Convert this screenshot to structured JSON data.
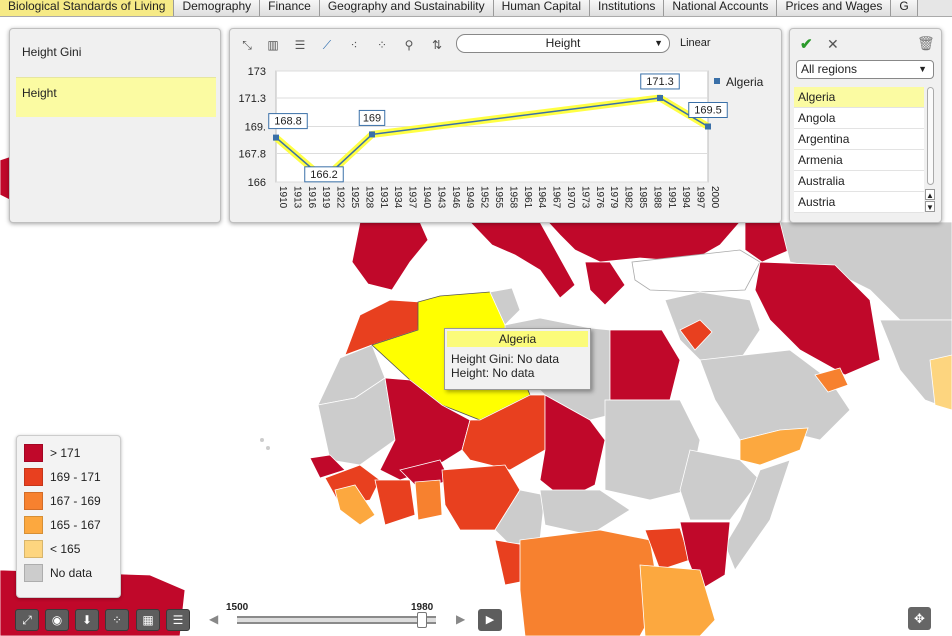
{
  "tabs": [
    {
      "label": "Biological Standards of Living",
      "active": true
    },
    {
      "label": "Demography"
    },
    {
      "label": "Finance"
    },
    {
      "label": "Geography and Sustainability"
    },
    {
      "label": "Human Capital"
    },
    {
      "label": "Institutions"
    },
    {
      "label": "National Accounts"
    },
    {
      "label": "Prices and Wages"
    },
    {
      "label": "G"
    }
  ],
  "indicators": {
    "items": [
      "Height Gini",
      "Height"
    ],
    "selected": "Height"
  },
  "chart_panel": {
    "indicator_select": "Height",
    "scale": "Linear",
    "toolbar_icons": [
      "scatter-line-icon",
      "bar-chart-icon",
      "horizontal-bar-icon",
      "line-chart-icon",
      "dot-plot-icon",
      "scatter-plot-icon",
      "magnifier-icon",
      "sort-icon"
    ]
  },
  "chart_data": {
    "type": "line",
    "title": "",
    "xlabel": "",
    "ylabel": "",
    "ylim": [
      166,
      173
    ],
    "yticks": [
      "173",
      "171.3",
      "169.",
      "167.8",
      "166"
    ],
    "xticks": [
      "1910",
      "1913",
      "1916",
      "1919",
      "1922",
      "1925",
      "1928",
      "1931",
      "1934",
      "1937",
      "1940",
      "1943",
      "1946",
      "1949",
      "1952",
      "1955",
      "1958",
      "1961",
      "1964",
      "1967",
      "1970",
      "1973",
      "1976",
      "1979",
      "1982",
      "1985",
      "1988",
      "1991",
      "1994",
      "1997",
      "2000"
    ],
    "series": [
      {
        "name": "Algeria",
        "color": "#3a70a8",
        "points": [
          {
            "x": 1910,
            "y": 168.8,
            "label": "168.8"
          },
          {
            "x": 1920,
            "y": 166.2,
            "label": "166.2"
          },
          {
            "x": 1930,
            "y": 169,
            "label": "169"
          },
          {
            "x": 1990,
            "y": 171.3,
            "label": "171.3"
          },
          {
            "x": 2000,
            "y": 169.5,
            "label": "169.5"
          }
        ]
      }
    ],
    "grid": true,
    "legend": "right"
  },
  "regions": {
    "filter": "All regions",
    "list": [
      "Algeria",
      "Angola",
      "Argentina",
      "Armenia",
      "Australia",
      "Austria"
    ],
    "selected": "Algeria"
  },
  "tooltip": {
    "title": "Algeria",
    "line1": "Height Gini: No data",
    "line2": "Height: No data"
  },
  "map_legend": [
    {
      "label": "> 171",
      "color": "#c0082a"
    },
    {
      "label": "169 - 171",
      "color": "#e8401f"
    },
    {
      "label": "167 - 169",
      "color": "#f7812f"
    },
    {
      "label": "165 - 167",
      "color": "#fca83f"
    },
    {
      "label": "< 165",
      "color": "#fdd57f"
    },
    {
      "label": "No data",
      "color": "#cccccc"
    }
  ],
  "timeline": {
    "start": "1500",
    "end": "1980",
    "position": 0.95
  },
  "colors": {
    "highlight": "#ffff00",
    "tab_active": "#f6ea86",
    "selection": "#fbfba2"
  }
}
